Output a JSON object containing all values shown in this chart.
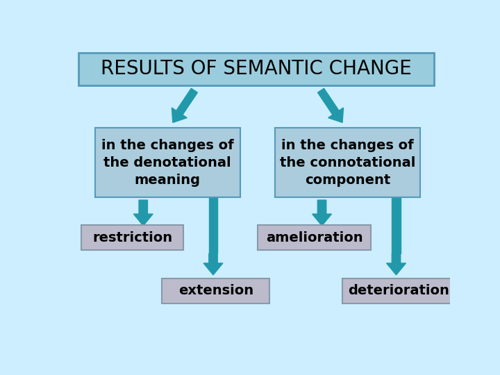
{
  "background_color": "#cceeff",
  "title_text": "RESULTS OF SEMANTIC CHANGE",
  "title_box_color": "#99ccdd",
  "title_box_edge": "#5599bb",
  "title_fontsize": 20,
  "title_fontweight": "normal",
  "box_blue_fill": "#aaccdd",
  "box_blue_edge": "#5599bb",
  "box_gray_fill": "#bbbbcc",
  "box_gray_edge": "#8899aa",
  "arrow_color": "#2299aa",
  "text_color": "#000000",
  "left_box_text": "in the changes of\nthe denotational\nmeaning",
  "right_box_text": "in the changes of\nthe connotational\ncomponent",
  "restriction_text": "restriction",
  "extension_text": "extension",
  "amelioration_text": "amelioration",
  "deterioration_text": "deterioration",
  "main_fontsize": 14,
  "sub_fontsize": 14
}
